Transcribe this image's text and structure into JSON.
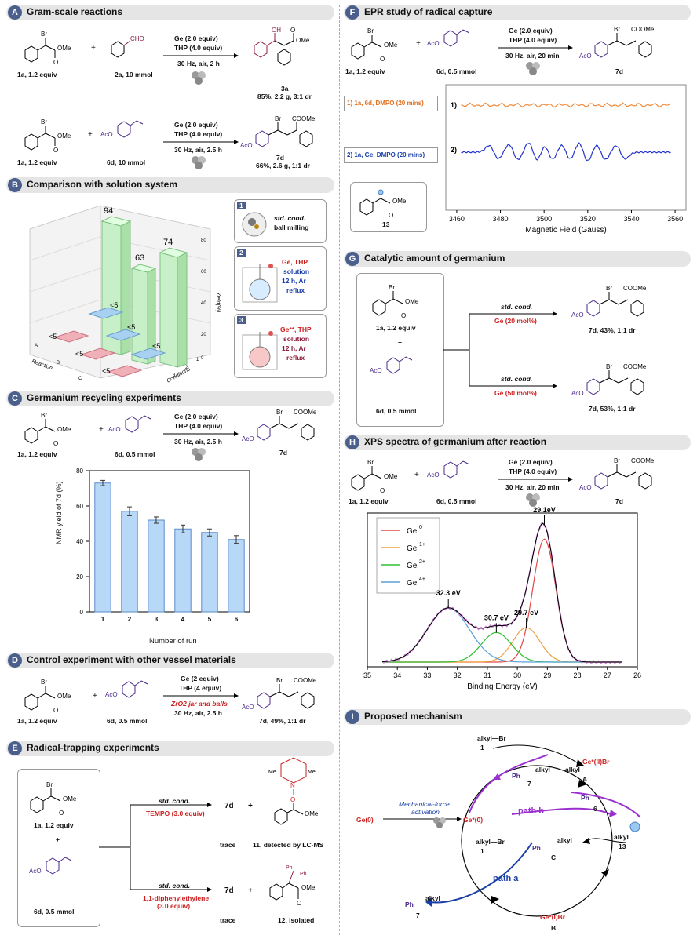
{
  "panels": {
    "A": {
      "letter": "A",
      "title": "Gram-scale reactions",
      "r1": {
        "reag1": "Ge (2.0 equiv)",
        "reag2": "THP (4.0 equiv)",
        "cond": "30 Hz, air, 2 h",
        "sub1": "1a, 1.2 equiv",
        "sub2": "2a, 10 mmol",
        "prod": "3a",
        "yield": "85%, 2.2 g, 3:1 dr"
      },
      "r2": {
        "reag1": "Ge (2.0 equiv)",
        "reag2": "THP (4.0 equiv)",
        "cond": "30 Hz, air, 2.5 h",
        "sub1": "1a, 1.2 equiv",
        "sub2": "6d, 10 mmol",
        "prod": "7d",
        "yield": "66%, 2.6 g, 1:1 dr"
      }
    },
    "B": {
      "letter": "B",
      "title": "Comparison with solution system",
      "chart_data": {
        "type": "bar",
        "axis_y": "Yield(%)",
        "axis_x": "Reaction",
        "axis_z": "Conditions",
        "ticks": [
          "0",
          "20",
          "40",
          "60",
          "80"
        ],
        "conditions": [
          "1",
          "2",
          "3"
        ],
        "reactions": [
          "A",
          "B",
          "C"
        ],
        "tall_labels": [
          "94",
          "63",
          "74"
        ],
        "small_labels": [
          "<5",
          "<5",
          "<5",
          "<5",
          "<5",
          "<5"
        ]
      },
      "cond1": {
        "num": "1",
        "t1": "std. cond.",
        "t2": "ball milling"
      },
      "cond2": {
        "num": "2",
        "t1": "Ge, THP",
        "t2": "solution",
        "t3": "12 h, Ar",
        "t4": "reflux"
      },
      "cond3": {
        "num": "3",
        "t1": "Ge**, THP",
        "t2": "solution",
        "t3": "12 h, Ar",
        "t4": "reflux"
      }
    },
    "C": {
      "letter": "C",
      "title": "Germanium recycling experiments",
      "rxn": {
        "reag1": "Ge (2.0 equiv)",
        "reag2": "THP (4.0 equiv)",
        "cond": "30 Hz, air, 2.5 h",
        "sub1": "1a, 1.2 equiv",
        "sub2": "6d, 0.5 mmol",
        "prod": "7d"
      },
      "chart_data": {
        "type": "bar",
        "ylabel": "NMR yield of 7d (%)",
        "xlabel": "Number of run",
        "categories": [
          "1",
          "2",
          "3",
          "4",
          "5",
          "6"
        ],
        "values": [
          73,
          57,
          52,
          47,
          45,
          41
        ],
        "errors": [
          1.5,
          2.5,
          1.8,
          2.2,
          2.0,
          2.2
        ],
        "ylim": [
          0,
          80
        ],
        "yticks": [
          "0",
          "20",
          "40",
          "60",
          "80"
        ]
      }
    },
    "D": {
      "letter": "D",
      "title": "Control experiment with other vessel materials",
      "rxn": {
        "reag1": "Ge (2 equiv)",
        "reag2": "THP (4 equiv)",
        "cond1": "ZrO2 jar and balls",
        "cond2": "30 Hz, air, 2.5 h",
        "sub1": "1a, 1.2 equiv",
        "sub2": "6d, 0.5 mmol",
        "yield": "7d, 49%, 1:1 dr"
      }
    },
    "E": {
      "letter": "E",
      "title": "Radical-trapping experiments",
      "sub1": "1a, 1.2 equiv",
      "plus": "+",
      "sub2": "6d, 0.5 mmol",
      "top": {
        "cond": "std. cond.",
        "add": "TEMPO (3.0 equiv)",
        "prod": "7d",
        "plus": "+",
        "trace": "trace",
        "adduct": "11, detected by LC-MS"
      },
      "bot": {
        "cond": "std. cond.",
        "add1": "1,1-diphenylethylene",
        "add2": "(3.0 equiv)",
        "prod": "7d",
        "plus": "+",
        "trace": "trace",
        "adduct": "12, isolated"
      }
    },
    "F": {
      "letter": "F",
      "title": "EPR study of radical capture",
      "rxn": {
        "reag1": "Ge (2.0 equiv)",
        "reag2": "THP (4.0 equiv)",
        "cond": "30 Hz, air, 20 min",
        "sub1": "1a, 1.2 equiv",
        "sub2": "6d, 0.5 mmol",
        "prod": "7d"
      },
      "legend1": "1) 1a, 6d, DMPO (20 mins)",
      "legend2": "2) 1a, Ge, DMPO (20 mins)",
      "radical": "13",
      "chart_data": {
        "type": "line",
        "xlabel": "Magnetic Field (Gauss)",
        "xlim": [
          3455,
          3565
        ],
        "xticks": [
          "3460",
          "3480",
          "3500",
          "3520",
          "3540",
          "3560"
        ],
        "series": [
          {
            "name": "1)",
            "color": "#f08a3a"
          },
          {
            "name": "2)",
            "color": "#2233cc"
          }
        ]
      }
    },
    "G": {
      "letter": "G",
      "title": "Catalytic amount of germanium",
      "sub1": "1a, 1.2 equiv",
      "plus": "+",
      "sub2": "6d, 0.5 mmol",
      "top": {
        "cond": "std. cond.",
        "ge": "Ge (20 mol%)",
        "yield": "7d, 43%, 1:1 dr"
      },
      "bot": {
        "cond": "std. cond.",
        "ge": "Ge (50 mol%)",
        "yield": "7d, 53%, 1:1 dr"
      }
    },
    "H": {
      "letter": "H",
      "title": "XPS spectra of germanium after reaction",
      "rxn": {
        "reag1": "Ge (2.0 equiv)",
        "reag2": "THP (4.0 equiv)",
        "cond": "30 Hz, air, 20 min",
        "sub1": "1a, 1.2 equiv",
        "sub2": "6d, 0.5 mmol",
        "prod": "7d"
      },
      "chart_data": {
        "type": "line",
        "xlabel": "Binding Energy (eV)",
        "xlim": [
          35,
          26
        ],
        "xticks": [
          "35",
          "34",
          "33",
          "32",
          "31",
          "30",
          "29",
          "28",
          "27",
          "26"
        ],
        "series": [
          {
            "name": "Ge",
            "sup": "0",
            "color": "#e04848",
            "center": 29.1,
            "height": 1.0,
            "width": 0.38
          },
          {
            "name": "Ge",
            "sup": "1+",
            "color": "#f0a040",
            "center": 29.7,
            "height": 0.28,
            "width": 0.45
          },
          {
            "name": "Ge",
            "sup": "2+",
            "color": "#30c030",
            "center": 30.7,
            "height": 0.24,
            "width": 0.5
          },
          {
            "name": "Ge",
            "sup": "4+",
            "color": "#5aa0d8",
            "center": 32.3,
            "height": 0.44,
            "width": 0.7
          }
        ],
        "peak_labels": [
          "29.1eV",
          "29.7 eV",
          "30.7 eV",
          "32.3 eV"
        ]
      }
    },
    "I": {
      "letter": "I",
      "title": "Proposed mechanism",
      "alkylbr_top": "alkyl—Br",
      "one_top": "1",
      "ge0": "Ge(0)",
      "activation1": "Mechanical-force",
      "activation2": "activation",
      "gestar0": "Ge*(0)",
      "gestarII": "Ge*(II)Br",
      "alkyl_A": "alkyl",
      "A": "A",
      "ph7": "Ph",
      "alkyl7": "alkyl",
      "seven_top": "7",
      "pathb": "path b",
      "ph6": "Ph",
      "six": "6",
      "alkyl13": "alkyl",
      "thirteen": "13",
      "alkylbr_left": "alkyl—Br",
      "one_left": "1",
      "phC": "Ph",
      "alkylC": "alkyl",
      "C": "C",
      "patha": "path a",
      "ph7b": "Ph",
      "alkyl7b": "alkyl",
      "seven_bot": "7",
      "geIBr": "Ge*(I)Br",
      "B": "B"
    }
  }
}
